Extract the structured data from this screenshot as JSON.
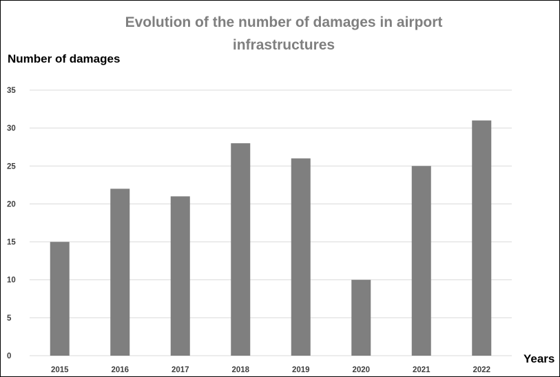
{
  "chart_data": {
    "type": "bar",
    "title_lines": [
      "Evolution of the number of damages in airport",
      "infrastructures"
    ],
    "ylabel": "Number of damages",
    "xlabel": "Years",
    "categories": [
      "2015",
      "2016",
      "2017",
      "2018",
      "2019",
      "2020",
      "2021",
      "2022"
    ],
    "values": [
      15,
      22,
      21,
      28,
      26,
      10,
      25,
      31
    ],
    "ylim": [
      0,
      35
    ],
    "yticks": [
      0,
      5,
      10,
      15,
      20,
      25,
      30,
      35
    ],
    "grid": true,
    "legend": "none",
    "bar_color": "#7f7f7f",
    "grid_color": "#d9d9d9",
    "title_color": "#7f7f7f"
  }
}
